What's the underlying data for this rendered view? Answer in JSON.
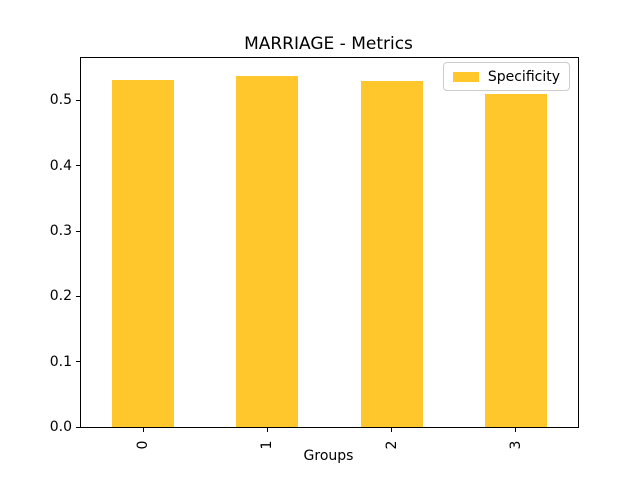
{
  "chart_data": {
    "type": "bar",
    "title": "MARRIAGE - Metrics",
    "xlabel": "Groups",
    "ylabel": "",
    "categories": [
      "0",
      "1",
      "2",
      "3"
    ],
    "series": [
      {
        "name": "Specificity",
        "color": "#ffc72c",
        "values": [
          0.532,
          0.538,
          0.53,
          0.51
        ]
      }
    ],
    "ylim": [
      0,
      0.565
    ],
    "yticks": [
      "0.0",
      "0.1",
      "0.2",
      "0.3",
      "0.4",
      "0.5"
    ],
    "x_tick_rotation": 90,
    "legend_position": "upper right",
    "grid": false,
    "bar_width_fraction": 0.5,
    "colors": {
      "bar": "#ffc72c",
      "axis": "#000000",
      "background": "#ffffff",
      "legend_border": "#cccccc"
    }
  }
}
